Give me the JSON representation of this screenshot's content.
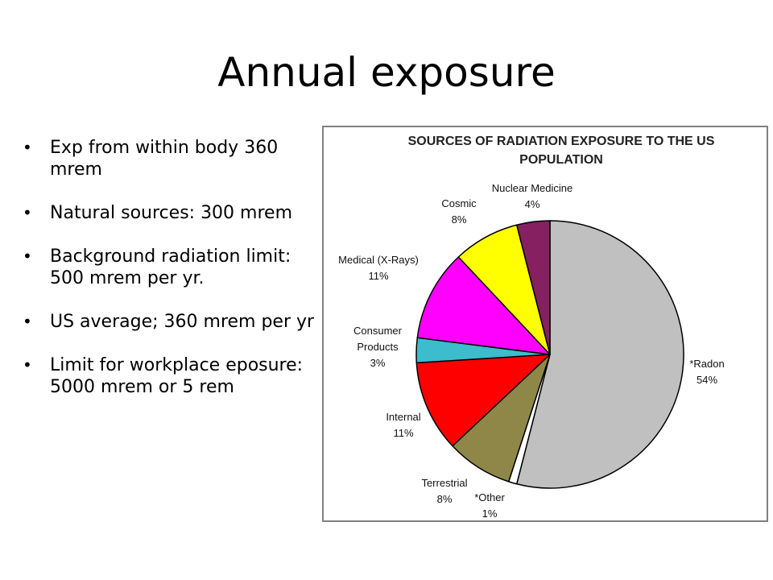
{
  "slide": {
    "title": "Annual exposure",
    "bullets": [
      "Exp from within body  360 mrem",
      "Natural sources:  300 mrem",
      "Background radiation limit:  500 mrem per yr.",
      "US average;  360 mrem per yr",
      "Limit for workplace eposure:  5000 mrem or 5 rem"
    ]
  },
  "chart_data": {
    "type": "pie",
    "title": "SOURCES OF RADIATION EXPOSURE TO THE US POPULATION",
    "title_lines": [
      "SOURCES OF RADIATION EXPOSURE TO THE US",
      "POPULATION"
    ],
    "unit": "%",
    "slices": [
      {
        "name": "*Radon",
        "value": 54,
        "color": "#c0c0c0"
      },
      {
        "name": "*Other",
        "value": 1,
        "color": "#ffffff"
      },
      {
        "name": "Terrestrial",
        "value": 8,
        "color": "#8e8748"
      },
      {
        "name": "Internal",
        "value": 11,
        "color": "#ff0000"
      },
      {
        "name": "Consumer Products",
        "value": 3,
        "color": "#3cbccc"
      },
      {
        "name": "Medical (X-Rays)",
        "value": 11,
        "color": "#ff00ff"
      },
      {
        "name": "Cosmic",
        "value": 8,
        "color": "#ffff00"
      },
      {
        "name": "Nuclear Medicine",
        "value": 4,
        "color": "#862060"
      }
    ],
    "labels": [
      {
        "lines": [
          "*Radon",
          "54%"
        ]
      },
      {
        "lines": [
          "*Other",
          "1%"
        ]
      },
      {
        "lines": [
          "Terrestrial",
          "8%"
        ]
      },
      {
        "lines": [
          "Internal",
          "11%"
        ]
      },
      {
        "lines": [
          "Consumer",
          "Products",
          "3%"
        ]
      },
      {
        "lines": [
          "Medical (X-Rays)",
          "11%"
        ]
      },
      {
        "lines": [
          "Cosmic",
          "8%"
        ]
      },
      {
        "lines": [
          "Nuclear Medicine",
          "4%"
        ]
      }
    ],
    "legend": "none"
  }
}
